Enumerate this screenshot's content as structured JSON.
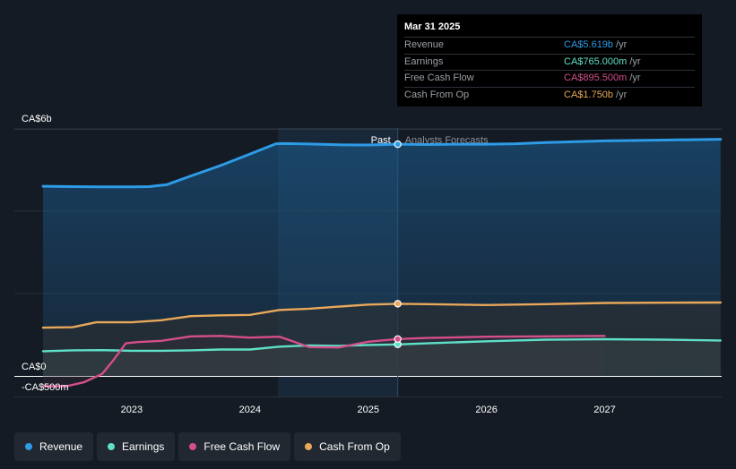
{
  "chart_data": {
    "type": "area",
    "title": "",
    "y_axis": {
      "unit": "CA$",
      "tick_labels": [
        "CA$6b",
        "CA$0",
        "-CA$500m"
      ],
      "ylim": [
        -500,
        6000
      ]
    },
    "x_axis": {
      "tick_labels": [
        "2023",
        "2024",
        "2025",
        "2026",
        "2027"
      ],
      "xlim": [
        2022.25,
        2027.98
      ]
    },
    "divider": {
      "x": 2025.25,
      "left_label": "Past",
      "right_label": "Analysts Forecasts"
    },
    "series": [
      {
        "name": "Revenue",
        "color": "#2d9be6",
        "points": [
          [
            2022.25,
            4600
          ],
          [
            2022.5,
            4590
          ],
          [
            2022.75,
            4585
          ],
          [
            2023.0,
            4585
          ],
          [
            2023.15,
            4590
          ],
          [
            2023.3,
            4640
          ],
          [
            2023.5,
            4850
          ],
          [
            2023.75,
            5100
          ],
          [
            2024.0,
            5380
          ],
          [
            2024.22,
            5630
          ],
          [
            2024.3,
            5635
          ],
          [
            2024.5,
            5625
          ],
          [
            2024.75,
            5605
          ],
          [
            2025.0,
            5600
          ],
          [
            2025.25,
            5619
          ],
          [
            2025.5,
            5610
          ],
          [
            2025.75,
            5620
          ],
          [
            2026.0,
            5620
          ],
          [
            2026.25,
            5630
          ],
          [
            2026.5,
            5660
          ],
          [
            2027.0,
            5700
          ],
          [
            2027.5,
            5720
          ],
          [
            2027.98,
            5740
          ]
        ]
      },
      {
        "name": "Earnings",
        "color": "#5fe0c8",
        "points": [
          [
            2022.25,
            600
          ],
          [
            2022.5,
            620
          ],
          [
            2022.75,
            625
          ],
          [
            2023.0,
            610
          ],
          [
            2023.25,
            610
          ],
          [
            2023.5,
            620
          ],
          [
            2023.75,
            640
          ],
          [
            2024.0,
            640
          ],
          [
            2024.25,
            710
          ],
          [
            2024.5,
            740
          ],
          [
            2024.75,
            730
          ],
          [
            2025.0,
            750
          ],
          [
            2025.25,
            765
          ],
          [
            2025.5,
            790
          ],
          [
            2026.0,
            840
          ],
          [
            2026.5,
            880
          ],
          [
            2027.0,
            890
          ],
          [
            2027.5,
            880
          ],
          [
            2027.98,
            860
          ]
        ]
      },
      {
        "name": "Free Cash Flow",
        "color": "#d44f8a",
        "points": [
          [
            2022.25,
            -250
          ],
          [
            2022.45,
            -250
          ],
          [
            2022.6,
            -150
          ],
          [
            2022.75,
            50
          ],
          [
            2022.85,
            400
          ],
          [
            2022.95,
            790
          ],
          [
            2023.05,
            820
          ],
          [
            2023.25,
            850
          ],
          [
            2023.5,
            960
          ],
          [
            2023.75,
            970
          ],
          [
            2024.0,
            930
          ],
          [
            2024.25,
            950
          ],
          [
            2024.35,
            850
          ],
          [
            2024.5,
            700
          ],
          [
            2024.75,
            690
          ],
          [
            2025.0,
            830
          ],
          [
            2025.25,
            895
          ],
          [
            2025.5,
            920
          ],
          [
            2026.0,
            950
          ],
          [
            2026.5,
            960
          ],
          [
            2027.0,
            970
          ]
        ]
      },
      {
        "name": "Cash From Op",
        "color": "#e8a85a",
        "points": [
          [
            2022.25,
            1170
          ],
          [
            2022.5,
            1180
          ],
          [
            2022.7,
            1300
          ],
          [
            2023.0,
            1300
          ],
          [
            2023.25,
            1350
          ],
          [
            2023.5,
            1450
          ],
          [
            2023.75,
            1470
          ],
          [
            2024.0,
            1480
          ],
          [
            2024.25,
            1600
          ],
          [
            2024.5,
            1630
          ],
          [
            2024.75,
            1680
          ],
          [
            2025.0,
            1730
          ],
          [
            2025.25,
            1750
          ],
          [
            2025.5,
            1740
          ],
          [
            2026.0,
            1720
          ],
          [
            2026.5,
            1740
          ],
          [
            2027.0,
            1770
          ],
          [
            2027.5,
            1775
          ],
          [
            2027.98,
            1780
          ]
        ]
      }
    ]
  },
  "tooltip": {
    "date": "Mar 31 2025",
    "unit": "/yr",
    "rows": [
      {
        "label": "Revenue",
        "value": "CA$5.619b",
        "color": "#2d9be6"
      },
      {
        "label": "Earnings",
        "value": "CA$765.000m",
        "color": "#5fe0c8"
      },
      {
        "label": "Free Cash Flow",
        "value": "CA$895.500m",
        "color": "#d44f8a"
      },
      {
        "label": "Cash From Op",
        "value": "CA$1.750b",
        "color": "#e8a85a"
      }
    ]
  },
  "legend": [
    {
      "label": "Revenue",
      "color": "#2d9be6"
    },
    {
      "label": "Earnings",
      "color": "#5fe0c8"
    },
    {
      "label": "Free Cash Flow",
      "color": "#d44f8a"
    },
    {
      "label": "Cash From Op",
      "color": "#e8a85a"
    }
  ]
}
